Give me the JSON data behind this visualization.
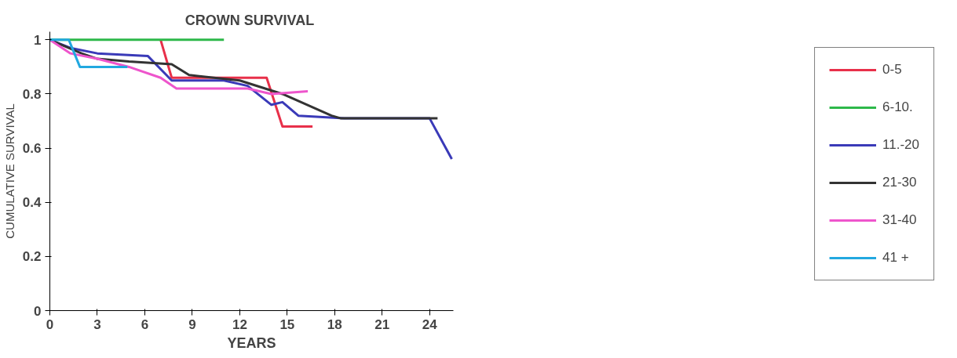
{
  "chart_data": {
    "type": "line",
    "title": "CROWN  SURVIVAL",
    "xlabel": "YEARS",
    "ylabel": "CUMULATIVE SURVIVAL",
    "xlim": [
      0,
      25.5
    ],
    "ylim": [
      0,
      1.03
    ],
    "xticks": [
      0,
      3,
      6,
      9,
      12,
      15,
      18,
      21,
      24
    ],
    "yticks": [
      0,
      0.2,
      0.4,
      0.6,
      0.8,
      1
    ],
    "grid": false,
    "legend": "right",
    "marker": "none",
    "line_style": "solid",
    "series": [
      {
        "name": "0-5",
        "color": "#e8304a",
        "x": [
          7,
          7.7,
          13.7,
          14.7,
          16.6
        ],
        "values": [
          1,
          0.86,
          0.86,
          0.68,
          0.68
        ]
      },
      {
        "name": "6-10.",
        "color": "#2db84a",
        "x": [
          0,
          11
        ],
        "values": [
          1,
          1
        ]
      },
      {
        "name": "11.-20",
        "color": "#3a3ab8",
        "x": [
          0,
          1.3,
          3,
          6.2,
          7.7,
          11,
          12.5,
          14,
          14.7,
          15.7,
          18.6,
          24,
          25.4
        ],
        "values": [
          1,
          0.97,
          0.95,
          0.94,
          0.85,
          0.85,
          0.83,
          0.76,
          0.77,
          0.72,
          0.71,
          0.71,
          0.56
        ]
      },
      {
        "name": "21-30",
        "color": "#333333",
        "x": [
          0,
          2,
          3,
          5,
          7.7,
          8.8,
          12,
          14.7,
          17.8,
          18.4,
          24.5
        ],
        "values": [
          1,
          0.95,
          0.93,
          0.92,
          0.91,
          0.87,
          0.85,
          0.8,
          0.72,
          0.71,
          0.71
        ]
      },
      {
        "name": "31-40",
        "color": "#ee55cc",
        "x": [
          0,
          1.3,
          3,
          5,
          7,
          8,
          12.5,
          14,
          16.3
        ],
        "values": [
          1,
          0.95,
          0.93,
          0.9,
          0.86,
          0.82,
          0.82,
          0.8,
          0.81
        ]
      },
      {
        "name": "41 +",
        "color": "#22a8e0",
        "x": [
          0,
          1.2,
          1.9,
          4.9
        ],
        "values": [
          1,
          1,
          0.9,
          0.9
        ]
      }
    ]
  }
}
